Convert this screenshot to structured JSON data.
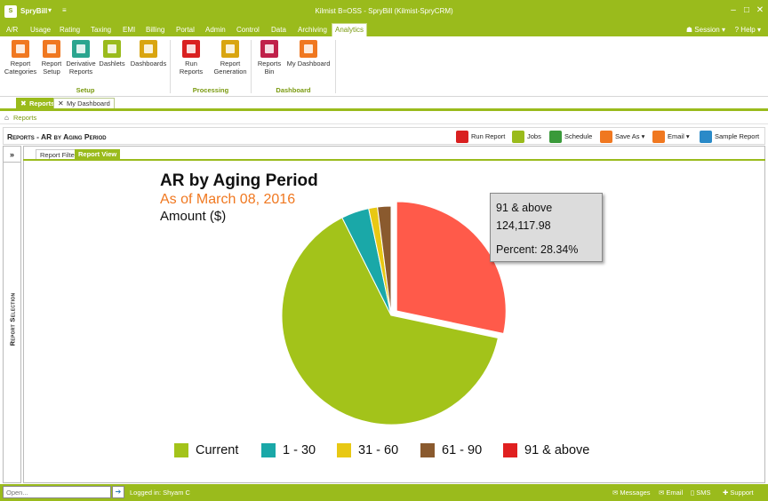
{
  "app": {
    "name": "SpryBill",
    "window_title": "Kilmist B=OSS - SpryBill (Kilmist-SpryCRM)",
    "logo_text": "S"
  },
  "menu": {
    "items": [
      "A/R",
      "Usage",
      "Rating",
      "Taxing",
      "EMI",
      "Billing",
      "Portal",
      "Admin",
      "Control",
      "Data",
      "Archiving",
      "Analytics"
    ],
    "active": "Analytics",
    "session": "Session",
    "help": "Help"
  },
  "ribbon": {
    "buttons": [
      {
        "label1": "Report",
        "label2": "Categories",
        "color": "#f07820"
      },
      {
        "label1": "Report",
        "label2": "Setup",
        "color": "#f07820"
      },
      {
        "label1": "Derivative",
        "label2": "Reports",
        "color": "#2aa58f"
      },
      {
        "label1": "Dashlets",
        "label2": "",
        "color": "#9abb1c"
      },
      {
        "label1": "Dashboards",
        "label2": "",
        "color": "#d9a510"
      },
      {
        "label1": "Run Reports",
        "label2": "",
        "color": "#d92020"
      },
      {
        "label1": "Report",
        "label2": "Generation",
        "color": "#d9a510"
      },
      {
        "label1": "Reports",
        "label2": "Bin",
        "color": "#c0204a"
      },
      {
        "label1": "My Dashboard",
        "label2": "",
        "color": "#f07820"
      }
    ],
    "groups": [
      "Setup",
      "Processing",
      "Dashboard"
    ]
  },
  "doc_tabs": {
    "reports": "Reports",
    "my_dashboard": "My Dashboard"
  },
  "breadcrumb": {
    "current": "Reports"
  },
  "report": {
    "title": "Reports - AR by Aging Period",
    "toolbar": {
      "run_report": "Run Report",
      "jobs": "Jobs",
      "schedule": "Schedule",
      "save_as": "Save As",
      "email": "Email",
      "sample_report": "Sample Report"
    },
    "side_label": "Report Selection",
    "side_toggle": "»",
    "subtabs": {
      "filter": "Report Filter",
      "view": "Report View"
    }
  },
  "chart_data": {
    "type": "pie",
    "title": "AR by Aging Period",
    "subtitle": "As of March 08, 2016",
    "unit_label": "Amount ($)",
    "categories": [
      "Current",
      "1 - 30",
      "31 - 60",
      "61 - 90",
      "91 & above"
    ],
    "percent": [
      64.3,
      4.1,
      1.3,
      2.0,
      28.34
    ],
    "colors": [
      "#a3c31a",
      "#1aa8a8",
      "#e8c813",
      "#8a5a2e",
      "#ff5a4a"
    ],
    "legend_colors": [
      "#a3c31a",
      "#1aa8a8",
      "#e8c813",
      "#8a5a2e",
      "#e02020"
    ],
    "legend_position": "bottom",
    "tooltip": {
      "category": "91 & above",
      "value": "124,117.98",
      "percent_text": "Percent: 28.34%"
    }
  },
  "status": {
    "open_placeholder": "Open...",
    "logged_in": "Logged in: Shyam C",
    "messages": "Messages",
    "email": "Email",
    "sms": "SMS",
    "support": "Support"
  }
}
